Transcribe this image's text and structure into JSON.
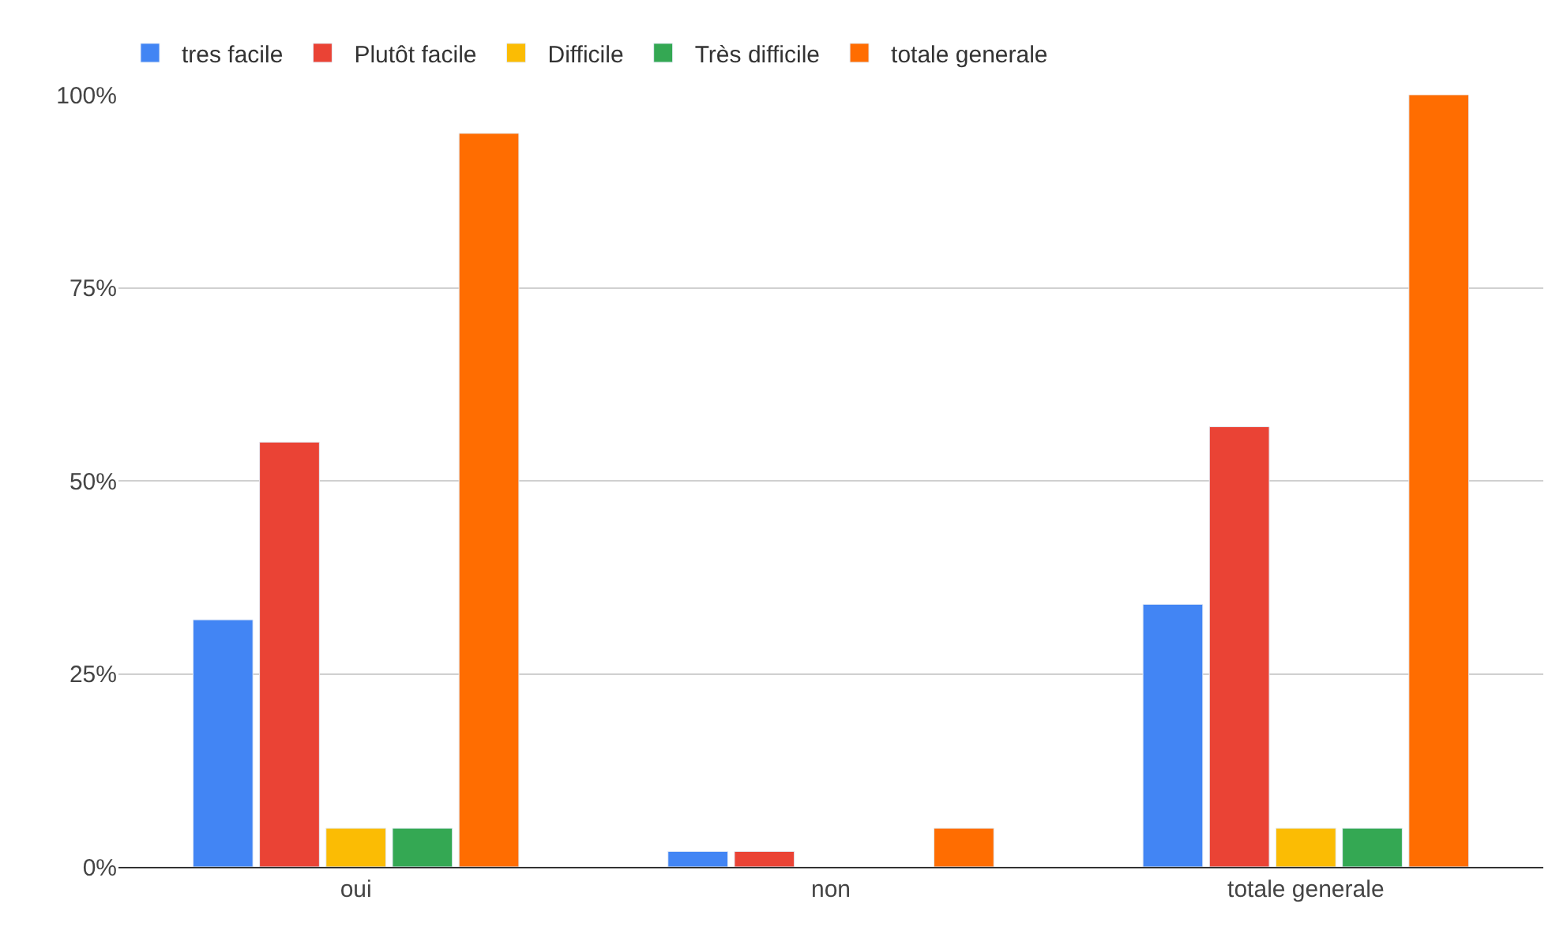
{
  "chart_data": {
    "type": "bar",
    "categories": [
      "oui",
      "non",
      "totale generale"
    ],
    "series": [
      {
        "name": "tres facile",
        "color": "#4285f4",
        "values": [
          32,
          2,
          34
        ]
      },
      {
        "name": "Plutôt facile",
        "color": "#ea4335",
        "values": [
          55,
          2,
          57
        ]
      },
      {
        "name": "Difficile",
        "color": "#fbbc04",
        "values": [
          5,
          null,
          5
        ]
      },
      {
        "name": "Très difficile",
        "color": "#34a853",
        "values": [
          5,
          null,
          5
        ]
      },
      {
        "name": "totale generale",
        "color": "#ff6d01",
        "values": [
          95,
          5,
          100
        ]
      }
    ],
    "ylim": [
      0,
      100
    ],
    "yticks": [
      {
        "value": 0,
        "label": "0%"
      },
      {
        "value": 25,
        "label": "25%"
      },
      {
        "value": 50,
        "label": "50%"
      },
      {
        "value": 75,
        "label": "75%"
      },
      {
        "value": 100,
        "label": "100%"
      }
    ],
    "grid": "y",
    "legend": "top left"
  }
}
